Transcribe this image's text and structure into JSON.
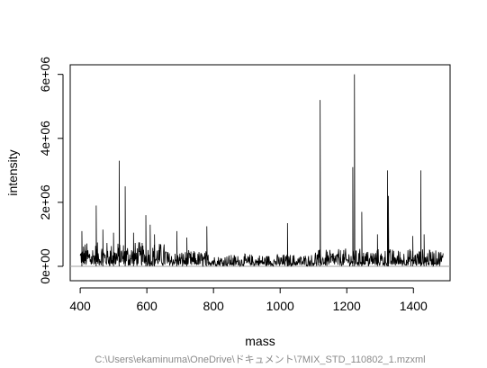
{
  "chart_data": {
    "type": "line",
    "title": "",
    "xlabel": "mass",
    "ylabel": "intensity",
    "subtitle": "C:\\Users\\ekaminuma\\OneDrive\\ドキュメント\\7MIX_STD_110802_1.mzxml",
    "xlim": [
      370,
      1510
    ],
    "ylim": [
      -450000,
      6300000
    ],
    "x_ticks": [
      400,
      600,
      800,
      1000,
      1200,
      1400
    ],
    "x_tick_labels": [
      "400",
      "600",
      "800",
      "1000",
      "1200",
      "1400"
    ],
    "y_ticks": [
      0,
      2000000,
      4000000,
      6000000
    ],
    "y_tick_labels": [
      "0e+00",
      "2e+06",
      "4e+06",
      "6e+06"
    ],
    "baseline": 0,
    "baseline_color": "#a0a0a0",
    "line_color": "#000000",
    "grid": false,
    "legend": "none",
    "noise_segments": [
      {
        "from": 400,
        "to": 660,
        "amplitude": 700000
      },
      {
        "from": 660,
        "to": 800,
        "amplitude": 450000
      },
      {
        "from": 800,
        "to": 1100,
        "amplitude": 350000
      },
      {
        "from": 1100,
        "to": 1500,
        "amplitude": 500000
      }
    ],
    "peaks": [
      {
        "x": 405,
        "y": 1100000
      },
      {
        "x": 448,
        "y": 1900000
      },
      {
        "x": 468,
        "y": 1150000
      },
      {
        "x": 500,
        "y": 1050000
      },
      {
        "x": 517,
        "y": 3300000
      },
      {
        "x": 535,
        "y": 2500000
      },
      {
        "x": 560,
        "y": 1050000
      },
      {
        "x": 597,
        "y": 1600000
      },
      {
        "x": 610,
        "y": 1300000
      },
      {
        "x": 623,
        "y": 1000000
      },
      {
        "x": 690,
        "y": 1100000
      },
      {
        "x": 720,
        "y": 900000
      },
      {
        "x": 780,
        "y": 1250000
      },
      {
        "x": 1022,
        "y": 1350000
      },
      {
        "x": 1120,
        "y": 5200000
      },
      {
        "x": 1218,
        "y": 3100000
      },
      {
        "x": 1223,
        "y": 6000000
      },
      {
        "x": 1245,
        "y": 1700000
      },
      {
        "x": 1292,
        "y": 1000000
      },
      {
        "x": 1322,
        "y": 3000000
      },
      {
        "x": 1325,
        "y": 2200000
      },
      {
        "x": 1398,
        "y": 950000
      },
      {
        "x": 1422,
        "y": 3000000
      },
      {
        "x": 1432,
        "y": 1000000
      }
    ]
  }
}
